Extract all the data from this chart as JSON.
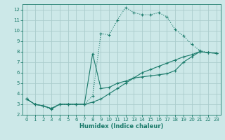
{
  "xlabel": "Humidex (Indice chaleur)",
  "bg_color": "#cce8e8",
  "grid_color": "#aacccc",
  "line_color": "#1a7a6a",
  "xlim": [
    -0.5,
    23.5
  ],
  "ylim": [
    2,
    12.5
  ],
  "xticks": [
    0,
    1,
    2,
    3,
    4,
    5,
    6,
    7,
    8,
    9,
    10,
    11,
    12,
    13,
    14,
    15,
    16,
    17,
    18,
    19,
    20,
    21,
    22,
    23
  ],
  "yticks": [
    2,
    3,
    4,
    5,
    6,
    7,
    8,
    9,
    10,
    11,
    12
  ],
  "curve1_x": [
    0,
    1,
    2,
    3,
    4,
    5,
    6,
    7,
    8,
    9,
    10,
    11,
    12,
    13,
    14,
    15,
    16,
    17,
    18,
    19,
    20,
    21,
    22,
    23
  ],
  "curve1_y": [
    3.5,
    3.0,
    2.85,
    2.5,
    3.0,
    3.0,
    3.0,
    3.0,
    3.8,
    9.7,
    9.6,
    11.0,
    12.2,
    11.7,
    11.5,
    11.5,
    11.7,
    11.3,
    10.1,
    9.5,
    8.7,
    8.1,
    7.9,
    7.85
  ],
  "curve2_x": [
    0,
    1,
    2,
    3,
    4,
    5,
    6,
    7,
    8,
    9,
    10,
    11,
    12,
    13,
    14,
    15,
    16,
    17,
    18,
    19,
    20,
    21,
    22,
    23
  ],
  "curve2_y": [
    3.5,
    3.0,
    2.85,
    2.6,
    3.0,
    3.0,
    3.0,
    3.0,
    3.2,
    3.5,
    4.0,
    4.5,
    5.0,
    5.5,
    6.0,
    6.3,
    6.6,
    6.9,
    7.2,
    7.5,
    7.7,
    8.0,
    7.9,
    7.85
  ],
  "curve3_x": [
    0,
    1,
    2,
    3,
    4,
    5,
    6,
    7,
    8,
    9,
    10,
    11,
    12,
    13,
    14,
    15,
    16,
    17,
    18,
    19,
    20,
    21,
    22,
    23
  ],
  "curve3_y": [
    3.5,
    3.0,
    2.85,
    2.6,
    3.0,
    3.0,
    3.0,
    3.0,
    7.8,
    4.5,
    4.6,
    5.0,
    5.2,
    5.5,
    5.6,
    5.7,
    5.8,
    5.9,
    6.2,
    7.0,
    7.5,
    8.0,
    7.9,
    7.85
  ]
}
